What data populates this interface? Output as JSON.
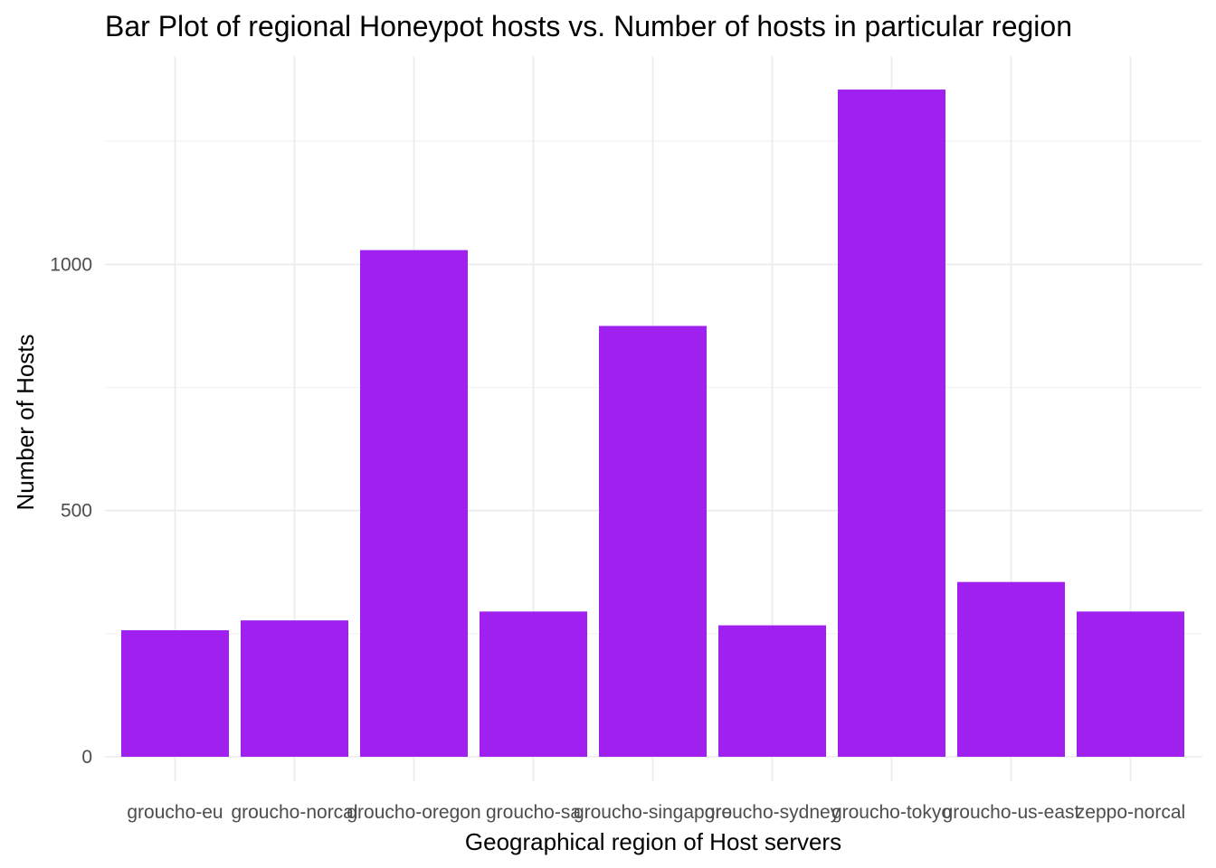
{
  "chart_data": {
    "type": "bar",
    "title": "Bar Plot of regional Honeypot hosts vs. Number of hosts in particular region",
    "xlabel": "Geographical region of Host servers",
    "ylabel": "Number of Hosts",
    "categories": [
      "groucho-eu",
      "groucho-norcal",
      "groucho-oregon",
      "groucho-sa",
      "groucho-singapore",
      "groucho-sydney",
      "groucho-tokyo",
      "groucho-us-east",
      "zeppo-norcal"
    ],
    "values": [
      257,
      277,
      1029,
      295,
      875,
      267,
      1355,
      355,
      295
    ],
    "ylim": [
      0,
      1400
    ],
    "yticks": [
      0,
      500,
      1000
    ],
    "yticks_minor": [
      250,
      750,
      1250
    ],
    "grid": true,
    "legend": "none",
    "bar_color": "#a020f0"
  }
}
